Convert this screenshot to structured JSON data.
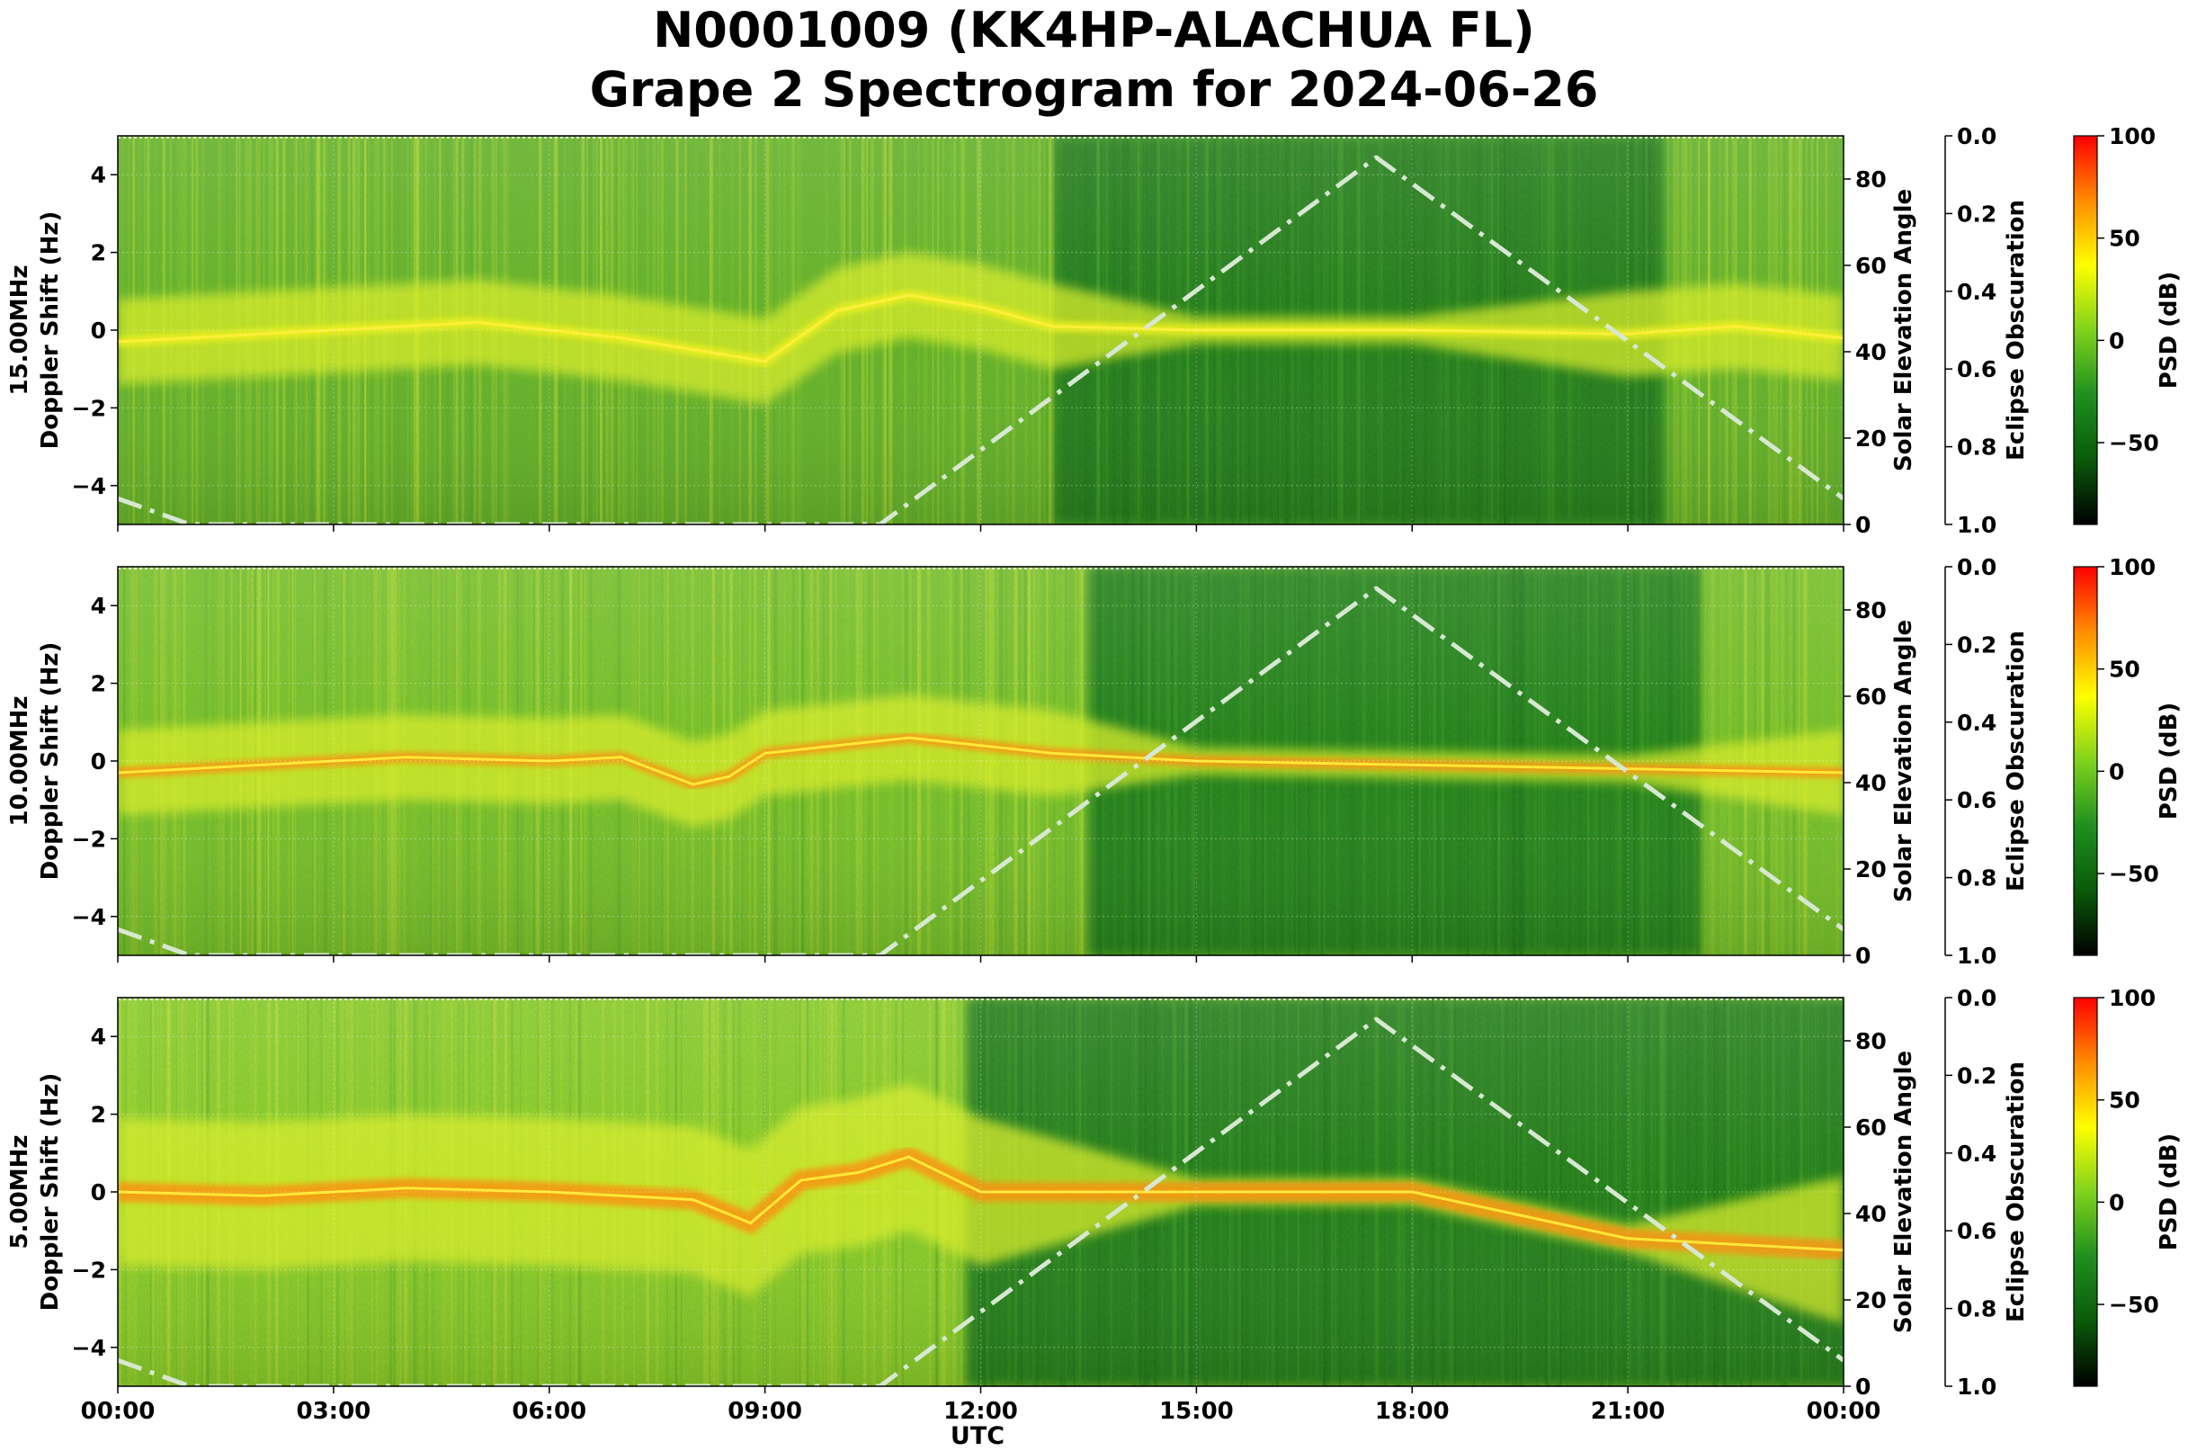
{
  "title": "N0001009 (KK4HP-ALACHUA FL)",
  "subtitle": "Grape 2 Spectrogram for 2024-06-26",
  "chart_data": {
    "type": "heatmap",
    "xlabel": "UTC",
    "x_ticks": [
      "00:00",
      "03:00",
      "06:00",
      "09:00",
      "12:00",
      "15:00",
      "18:00",
      "21:00",
      "00:00"
    ],
    "x_range_hours": [
      0,
      24
    ],
    "ylabel": "Doppler Shift (Hz)",
    "ylim": [
      -5,
      5
    ],
    "y_ticks": [
      4,
      2,
      0,
      -2,
      -4
    ],
    "y2label": "Solar Elevation Angle",
    "y2lim": [
      0,
      90
    ],
    "y2_ticks": [
      0,
      20,
      40,
      60,
      80
    ],
    "y3label": "Eclipse Obscuration",
    "y3lim": [
      0.0,
      1.0
    ],
    "y3_ticks": [
      "0.0",
      "0.2",
      "0.4",
      "0.6",
      "0.8",
      "1.0"
    ],
    "colorbar_label": "PSD (dB)",
    "colorbar_range": [
      -90,
      100
    ],
    "colorbar_ticks": [
      100,
      50,
      0,
      -50
    ],
    "colorbar_tick_labels": [
      "100",
      "50",
      "0",
      "−50"
    ],
    "colormap": [
      "#000000",
      "#0a5a0a",
      "#1f8f1f",
      "#7fd21c",
      "#ffff00",
      "#ff8c00",
      "#ff0000"
    ],
    "grid": true,
    "solar_elevation_series": {
      "style": "dash-dot",
      "color": "#d7e8d2",
      "hours": [
        0,
        1,
        10.6,
        17.5,
        24
      ],
      "elevation_deg": [
        6,
        0,
        0,
        85,
        6
      ]
    },
    "panels": [
      {
        "label": "15.00MHz",
        "doppler_trace_hours": [
          0,
          2,
          4,
          5,
          6,
          7,
          8,
          9,
          10,
          11,
          12,
          13,
          15,
          18,
          21,
          22.5,
          24
        ],
        "doppler_trace_hz": [
          -0.3,
          -0.1,
          0.1,
          0.2,
          0.0,
          -0.2,
          -0.5,
          -0.8,
          0.5,
          0.9,
          0.6,
          0.1,
          0.0,
          0.0,
          -0.1,
          0.1,
          -0.2
        ]
      },
      {
        "label": "10.00MHz",
        "doppler_trace_hours": [
          0,
          2,
          4,
          6,
          7,
          8,
          8.5,
          9,
          10,
          11,
          12,
          13,
          15,
          18,
          21,
          24
        ],
        "doppler_trace_hz": [
          -0.3,
          -0.1,
          0.1,
          0.0,
          0.1,
          -0.6,
          -0.4,
          0.2,
          0.4,
          0.6,
          0.4,
          0.2,
          0.0,
          -0.1,
          -0.2,
          -0.3
        ]
      },
      {
        "label": "5.00MHz",
        "doppler_trace_hours": [
          0,
          2,
          4,
          6,
          8,
          8.8,
          9.5,
          10.3,
          11,
          12,
          15,
          18,
          21,
          24
        ],
        "doppler_trace_hz": [
          0.0,
          -0.1,
          0.1,
          0.0,
          -0.2,
          -0.8,
          0.3,
          0.5,
          0.9,
          0.0,
          0.0,
          0.0,
          -1.2,
          -1.5
        ]
      }
    ]
  }
}
